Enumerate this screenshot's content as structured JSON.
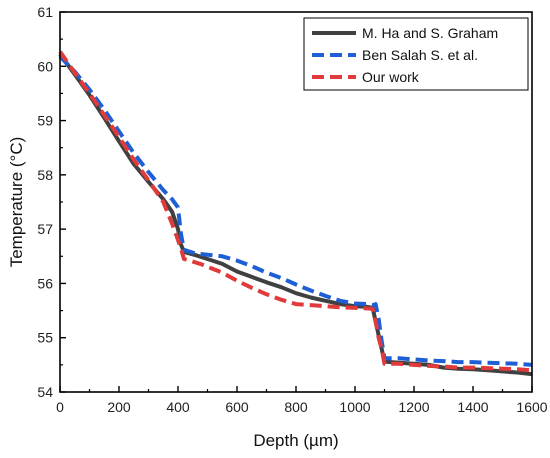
{
  "chart_data": {
    "type": "line",
    "xlabel": "Depth (µm)",
    "ylabel": "Temperature (°C)",
    "xlim": [
      0,
      1600
    ],
    "ylim": [
      54,
      61
    ],
    "xticks": [
      0,
      200,
      400,
      600,
      800,
      1000,
      1200,
      1400,
      1600
    ],
    "yticks": [
      54,
      55,
      56,
      57,
      58,
      59,
      60,
      61
    ],
    "grid": false,
    "legend_position": "top-right",
    "series": [
      {
        "name": "M. Ha and S. Graham",
        "color": "#404040",
        "dash": "solid",
        "x": [
          0,
          50,
          100,
          150,
          200,
          250,
          300,
          350,
          380,
          400,
          410,
          420,
          460,
          500,
          550,
          600,
          650,
          700,
          750,
          800,
          850,
          900,
          950,
          1000,
          1040,
          1060,
          1070,
          1080,
          1090,
          1100,
          1150,
          1200,
          1250,
          1300,
          1350,
          1400,
          1450,
          1500,
          1550,
          1600
        ],
        "y": [
          60.22,
          59.85,
          59.47,
          59.05,
          58.62,
          58.2,
          57.87,
          57.55,
          57.32,
          57.0,
          56.72,
          56.58,
          56.52,
          56.45,
          56.36,
          56.22,
          56.12,
          56.02,
          55.93,
          55.82,
          55.74,
          55.68,
          55.62,
          55.58,
          55.57,
          55.55,
          55.3,
          55.05,
          54.8,
          54.56,
          54.54,
          54.52,
          54.5,
          54.45,
          54.43,
          54.42,
          54.4,
          54.38,
          54.36,
          54.33
        ]
      },
      {
        "name": "Ben Salah S. et al.",
        "color": "#1f5fd6",
        "dash": "dashed",
        "x": [
          0,
          50,
          100,
          150,
          200,
          250,
          300,
          350,
          380,
          400,
          410,
          420,
          460,
          500,
          550,
          600,
          650,
          700,
          750,
          800,
          850,
          900,
          950,
          1000,
          1040,
          1060,
          1070,
          1080,
          1090,
          1100,
          1150,
          1200,
          1250,
          1300,
          1350,
          1400,
          1450,
          1500,
          1550,
          1600
        ],
        "y": [
          60.18,
          59.9,
          59.57,
          59.2,
          58.8,
          58.4,
          58.05,
          57.72,
          57.55,
          57.4,
          56.92,
          56.62,
          56.55,
          56.53,
          56.5,
          56.42,
          56.32,
          56.2,
          56.1,
          55.98,
          55.87,
          55.77,
          55.68,
          55.63,
          55.62,
          55.6,
          55.62,
          55.35,
          54.95,
          54.62,
          54.62,
          54.6,
          54.58,
          54.57,
          54.55,
          54.55,
          54.54,
          54.53,
          54.52,
          54.5
        ]
      },
      {
        "name": "Our work",
        "color": "#e03a3a",
        "dash": "dashed",
        "x": [
          0,
          50,
          100,
          150,
          200,
          250,
          300,
          350,
          380,
          400,
          410,
          420,
          440,
          480,
          550,
          600,
          650,
          700,
          750,
          800,
          850,
          900,
          950,
          1000,
          1040,
          1060,
          1070,
          1080,
          1090,
          1100,
          1150,
          1200,
          1250,
          1300,
          1350,
          1400,
          1450,
          1500,
          1550,
          1600
        ],
        "y": [
          60.27,
          59.88,
          59.5,
          59.1,
          58.7,
          58.28,
          57.9,
          57.5,
          57.1,
          56.8,
          56.65,
          56.45,
          56.42,
          56.35,
          56.2,
          56.05,
          55.92,
          55.8,
          55.7,
          55.62,
          55.6,
          55.58,
          55.56,
          55.55,
          55.54,
          55.53,
          55.3,
          55.0,
          54.8,
          54.52,
          54.52,
          54.5,
          54.48,
          54.47,
          54.45,
          54.45,
          54.44,
          54.43,
          54.42,
          54.4
        ]
      }
    ]
  }
}
